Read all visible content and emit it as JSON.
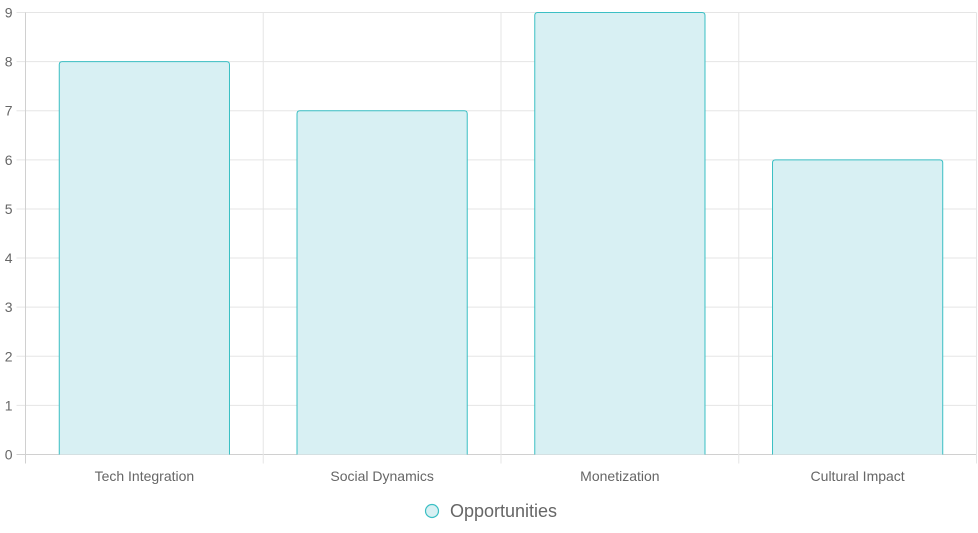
{
  "chart_data": {
    "type": "bar",
    "categories": [
      "Tech Integration",
      "Social Dynamics",
      "Monetization",
      "Cultural Impact"
    ],
    "series": [
      {
        "name": "Opportunities",
        "values": [
          8,
          7,
          9,
          6
        ]
      }
    ],
    "title": "",
    "xlabel": "",
    "ylabel": "",
    "ylim": [
      0,
      9
    ],
    "yticks": [
      0,
      1,
      2,
      3,
      4,
      5,
      6,
      7,
      8,
      9
    ],
    "grid": true,
    "legend": "bottom",
    "colors": {
      "bar_fill": "#d8f0f3",
      "bar_stroke": "#3bbfc4",
      "grid": "#e5e5e5",
      "axis": "#d0d0d0",
      "text": "#666666"
    }
  }
}
